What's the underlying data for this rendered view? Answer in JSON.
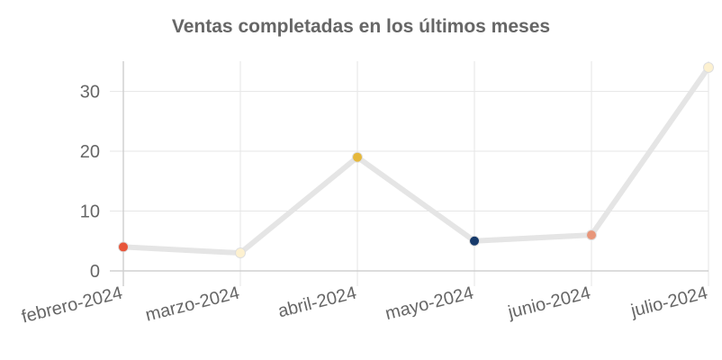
{
  "chart_data": {
    "type": "line",
    "title": "Ventas completadas en los últimos meses",
    "xlabel": "",
    "ylabel": "",
    "categories": [
      "febrero-2024",
      "marzo-2024",
      "abril-2024",
      "mayo-2024",
      "junio-2024",
      "julio-2024"
    ],
    "series": [
      {
        "values": [
          4,
          3,
          19,
          5,
          6,
          34
        ],
        "line_color": "#e5e5e5",
        "point_colors": [
          "#e8553a",
          "#fdf1d0",
          "#e6b83b",
          "#163a6b",
          "#e8967a",
          "#fdf1d0"
        ]
      }
    ],
    "ylim": [
      0,
      34
    ],
    "yticks": [
      0,
      10,
      20,
      30
    ],
    "grid": true,
    "legend": "none"
  }
}
